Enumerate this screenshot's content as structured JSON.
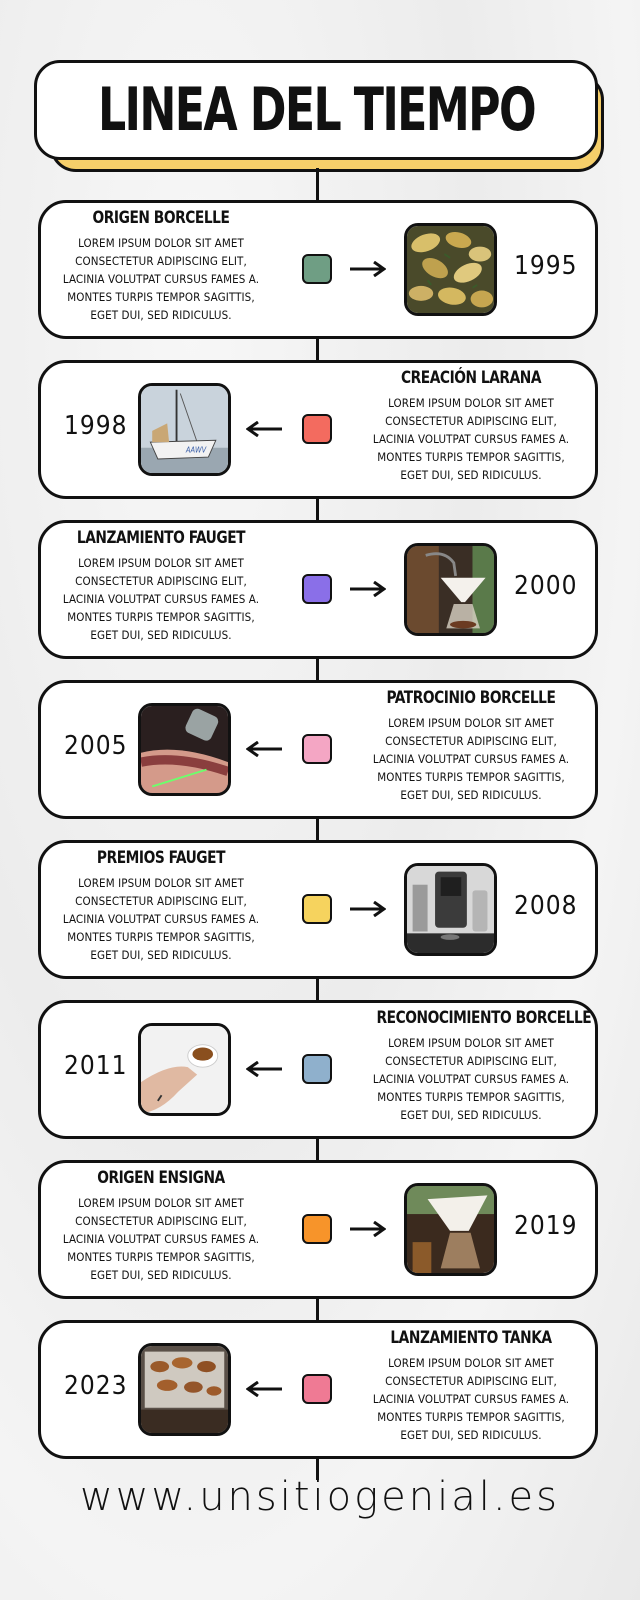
{
  "title": "LINEA DEL TIEMPO",
  "footer": "www.unsitiogenial.es",
  "events": [
    {
      "heading": "ORIGEN BORCELLE",
      "year": "1995",
      "color": "#6f9e84",
      "photo": "roasted-potatoes",
      "text": "LOREM IPSUM DOLOR SIT AMET\nCONSECTETUR ADIPISCING ELIT,\nLACINIA VOLUTPAT CURSUS FAMES A.\nMONTES TURPIS TEMPOR SAGITTIS,\nEGET DUI, SED RIDICULUS."
    },
    {
      "heading": "CREACIÓN LARANA",
      "year": "1998",
      "color": "#f36b5f",
      "photo": "sailboat",
      "text": "LOREM IPSUM DOLOR SIT AMET\nCONSECTETUR ADIPISCING ELIT,\nLACINIA VOLUTPAT CURSUS FAMES A.\nMONTES TURPIS TEMPOR SAGITTIS,\nEGET DUI, SED RIDICULUS."
    },
    {
      "heading": "LANZAMIENTO FAUGET",
      "year": "2000",
      "color": "#8a6fe8",
      "photo": "pour-over-coffee",
      "text": "LOREM IPSUM DOLOR SIT AMET\nCONSECTETUR ADIPISCING ELIT,\nLACINIA VOLUTPAT CURSUS FAMES A.\nMONTES TURPIS TEMPOR SAGITTIS,\nEGET DUI, SED RIDICULUS."
    },
    {
      "heading": "PATROCINIO BORCELLE",
      "year": "2005",
      "color": "#f4a6c4",
      "photo": "laser-treatment",
      "text": "LOREM IPSUM DOLOR SIT AMET\nCONSECTETUR ADIPISCING ELIT,\nLACINIA VOLUTPAT CURSUS FAMES A.\nMONTES TURPIS TEMPOR SAGITTIS,\nEGET DUI, SED RIDICULUS."
    },
    {
      "heading": "PREMIOS FAUGET",
      "year": "2008",
      "color": "#f6d35e",
      "photo": "coffee-machine",
      "text": "LOREM IPSUM DOLOR SIT AMET\nCONSECTETUR ADIPISCING ELIT,\nLACINIA VOLUTPAT CURSUS FAMES A.\nMONTES TURPIS TEMPOR SAGITTIS,\nEGET DUI, SED RIDICULUS."
    },
    {
      "heading": "RECONOCIMIENTO BORCELLE",
      "year": "2011",
      "color": "#8fb0cc",
      "photo": "espresso-cup",
      "text": "LOREM IPSUM DOLOR SIT AMET\nCONSECTETUR ADIPISCING ELIT,\nLACINIA VOLUTPAT CURSUS FAMES A.\nMONTES TURPIS TEMPOR SAGITTIS,\nEGET DUI, SED RIDICULUS."
    },
    {
      "heading": "ORIGEN ENSIGNA",
      "year": "2019",
      "color": "#f7942a",
      "photo": "coffee-filter",
      "text": "LOREM IPSUM DOLOR SIT AMET\nCONSECTETUR ADIPISCING ELIT,\nLACINIA VOLUTPAT CURSUS FAMES A.\nMONTES TURPIS TEMPOR SAGITTIS,\nEGET DUI, SED RIDICULUS."
    },
    {
      "heading": "LANZAMIENTO TANKA",
      "year": "2023",
      "color": "#ef7a94",
      "photo": "baked-pastries",
      "text": "LOREM IPSUM DOLOR SIT AMET\nCONSECTETUR ADIPISCING ELIT,\nLACINIA VOLUTPAT CURSUS FAMES A.\nMONTES TURPIS TEMPOR SAGITTIS,\nEGET DUI, SED RIDICULUS."
    }
  ]
}
